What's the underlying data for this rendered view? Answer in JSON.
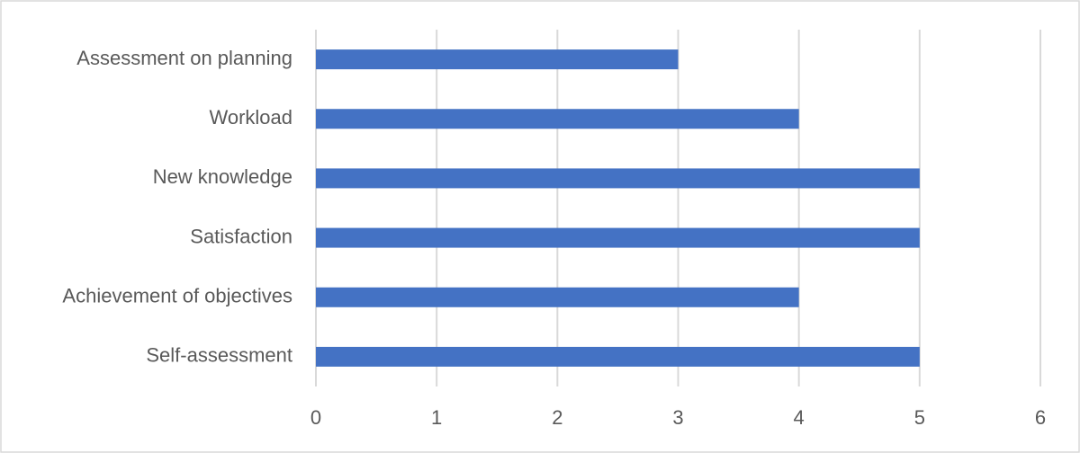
{
  "chart_data": {
    "type": "bar",
    "orientation": "horizontal",
    "categories": [
      "Assessment on planning",
      "Workload",
      "New knowledge",
      "Satisfaction",
      "Achievement of objectives",
      "Self-assessment"
    ],
    "values": [
      3,
      4,
      5,
      5,
      4,
      5
    ],
    "color": "#4472c4",
    "xlim": [
      0,
      6
    ],
    "xticks": [
      0,
      1,
      2,
      3,
      4,
      5,
      6
    ],
    "grid": true
  }
}
